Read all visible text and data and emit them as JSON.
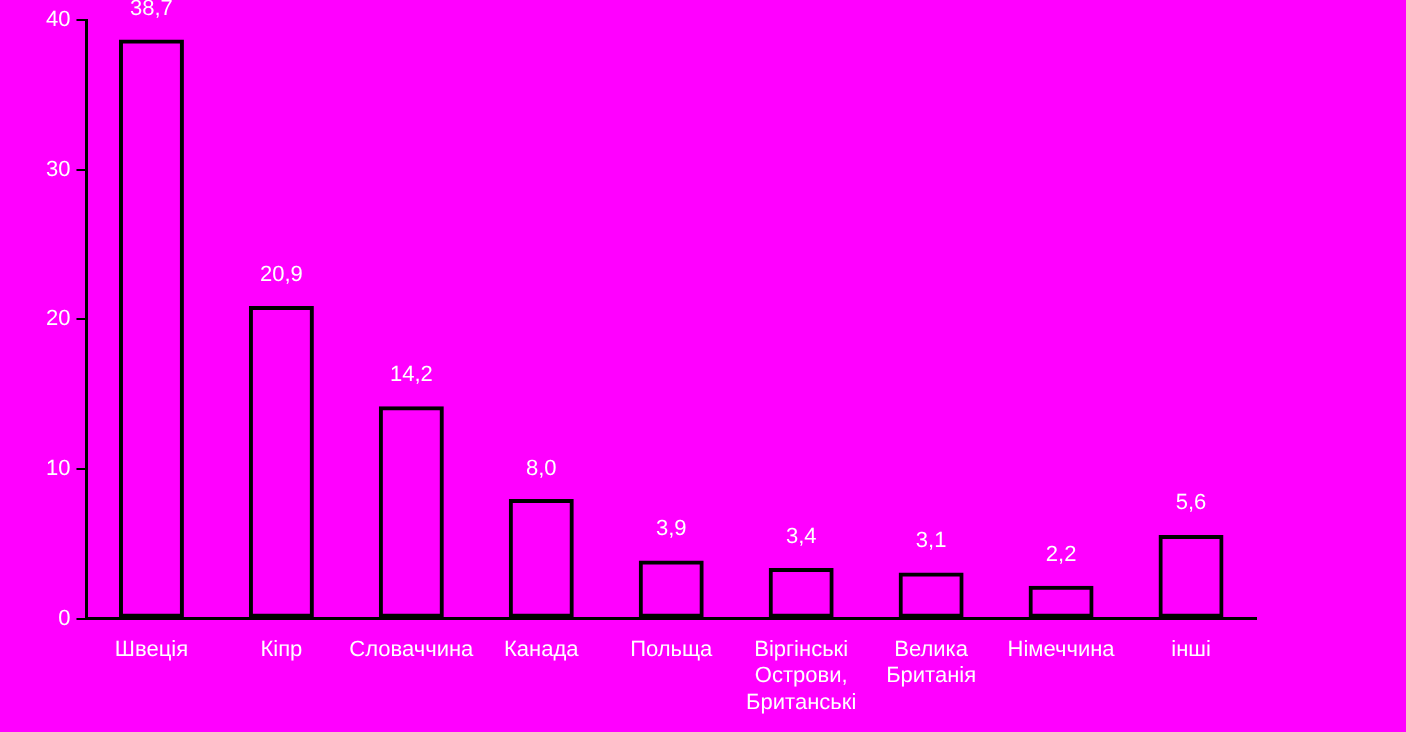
{
  "chart_data": {
    "type": "bar",
    "categories": [
      "Швеція",
      "Кіпр",
      "Словаччина",
      "Канада",
      "Польща",
      "Віргінські Острови, Британські",
      "Велика Британія",
      "Німеччина",
      "інші"
    ],
    "values": [
      38.7,
      20.9,
      14.2,
      8.0,
      3.9,
      3.4,
      3.1,
      2.2,
      5.6
    ],
    "value_labels": [
      "38,7",
      "20,9",
      "14,2",
      "8,0",
      "3,9",
      "3,4",
      "3,1",
      "2,2",
      "5,6"
    ],
    "color": "#000000",
    "ylim": [
      0,
      40
    ],
    "yticks": [
      0,
      10,
      20,
      30,
      40
    ],
    "grid": false,
    "legend": false
  }
}
